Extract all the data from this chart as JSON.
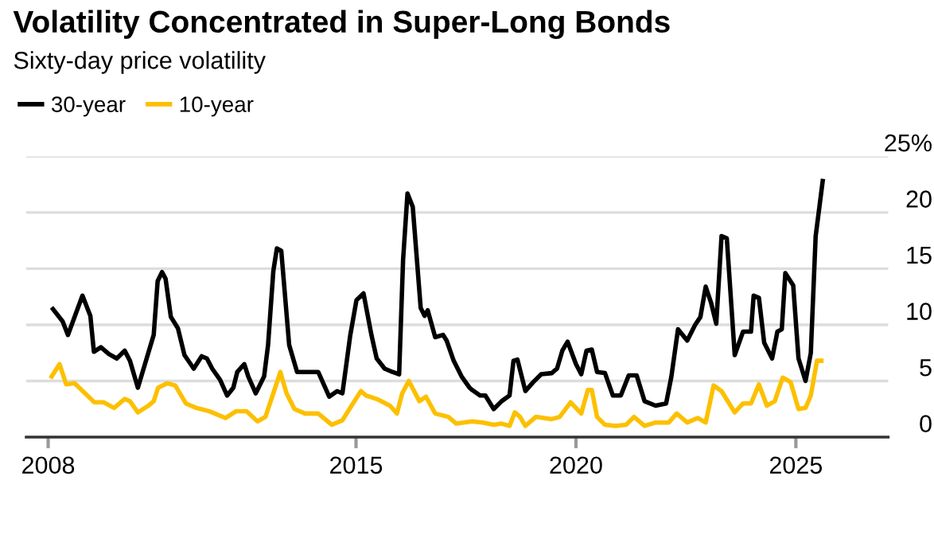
{
  "chart_data": {
    "type": "line",
    "title": "Volatility Concentrated in Super-Long Bonds",
    "subtitle": "Sixty-day price volatility",
    "series": [
      {
        "name": "30-year",
        "color": "#000000",
        "x": [
          2008.11,
          2008.33,
          2008.45,
          2008.78,
          2008.96,
          2009.04,
          2009.2,
          2009.38,
          2009.56,
          2009.74,
          2009.86,
          2010.04,
          2010.4,
          2010.49,
          2010.59,
          2010.67,
          2010.79,
          2010.95,
          2011.1,
          2011.31,
          2011.49,
          2011.61,
          2011.73,
          2011.91,
          2012.07,
          2012.21,
          2012.3,
          2012.46,
          2012.55,
          2012.72,
          2012.91,
          2013.0,
          2013.12,
          2013.2,
          2013.3,
          2013.48,
          2013.66,
          2013.9,
          2014.14,
          2014.39,
          2014.57,
          2014.69,
          2014.87,
          2015.01,
          2015.17,
          2015.35,
          2015.47,
          2015.65,
          2015.83,
          2015.98,
          2016.07,
          2016.17,
          2016.29,
          2016.47,
          2016.56,
          2016.63,
          2016.8,
          2016.98,
          2017.06,
          2017.22,
          2017.4,
          2017.58,
          2017.64,
          2017.82,
          2017.94,
          2018.13,
          2018.31,
          2018.49,
          2018.58,
          2018.67,
          2018.85,
          2019.03,
          2019.21,
          2019.45,
          2019.57,
          2019.69,
          2019.81,
          2020.0,
          2020.12,
          2020.24,
          2020.36,
          2020.48,
          2020.66,
          2020.84,
          2021.02,
          2021.2,
          2021.38,
          2021.56,
          2021.81,
          2022.05,
          2022.17,
          2022.32,
          2022.53,
          2022.71,
          2022.83,
          2022.95,
          2023.07,
          2023.19,
          2023.31,
          2023.43,
          2023.61,
          2023.8,
          2023.98,
          2024.04,
          2024.16,
          2024.28,
          2024.46,
          2024.58,
          2024.68,
          2024.76,
          2024.94,
          2025.06,
          2025.22,
          2025.34,
          2025.45,
          2025.61
        ],
        "values": [
          11.4,
          10.3,
          9.1,
          12.6,
          10.8,
          7.6,
          8.0,
          7.4,
          7.0,
          7.7,
          6.8,
          4.4,
          9.1,
          13.9,
          14.7,
          14.1,
          10.7,
          9.7,
          7.3,
          6.1,
          7.2,
          7.0,
          6.1,
          5.1,
          3.7,
          4.4,
          5.8,
          6.5,
          5.4,
          3.9,
          5.4,
          8.2,
          14.8,
          16.8,
          16.6,
          8.2,
          5.8,
          5.8,
          5.8,
          3.6,
          4.1,
          3.9,
          9.1,
          12.2,
          12.8,
          9.1,
          7.0,
          6.1,
          5.8,
          5.6,
          15.8,
          21.7,
          20.5,
          11.5,
          10.8,
          11.3,
          8.9,
          9.1,
          8.6,
          6.8,
          5.4,
          4.4,
          4.2,
          3.7,
          3.7,
          2.5,
          3.2,
          3.7,
          6.8,
          6.9,
          4.1,
          4.9,
          5.6,
          5.7,
          6.1,
          7.7,
          8.5,
          6.5,
          5.6,
          7.7,
          7.8,
          5.8,
          5.7,
          3.7,
          3.7,
          5.5,
          5.5,
          3.2,
          2.8,
          3.0,
          5.4,
          9.6,
          8.6,
          10.0,
          10.7,
          13.4,
          12.0,
          10.1,
          17.9,
          17.7,
          7.3,
          9.4,
          9.4,
          12.6,
          12.4,
          8.4,
          7.0,
          9.4,
          9.6,
          14.6,
          13.5,
          7.0,
          5.0,
          7.5,
          17.9,
          22.8
        ]
      },
      {
        "name": "10-year",
        "color": "#fcc000",
        "x": [
          2008.08,
          2008.26,
          2008.41,
          2008.6,
          2008.84,
          2009.05,
          2009.26,
          2009.5,
          2009.74,
          2009.86,
          2010.04,
          2010.28,
          2010.4,
          2010.5,
          2010.71,
          2010.89,
          2011.13,
          2011.37,
          2011.67,
          2012.03,
          2012.27,
          2012.51,
          2012.76,
          2012.94,
          2013.12,
          2013.28,
          2013.42,
          2013.6,
          2013.84,
          2014.14,
          2014.45,
          2014.69,
          2014.93,
          2015.11,
          2015.23,
          2015.47,
          2015.77,
          2015.93,
          2016.05,
          2016.2,
          2016.44,
          2016.59,
          2016.8,
          2017.1,
          2017.28,
          2017.64,
          2017.88,
          2018.13,
          2018.31,
          2018.49,
          2018.61,
          2018.73,
          2018.85,
          2019.09,
          2019.45,
          2019.63,
          2019.88,
          2020.12,
          2020.27,
          2020.36,
          2020.48,
          2020.66,
          2020.9,
          2021.14,
          2021.32,
          2021.56,
          2021.81,
          2022.11,
          2022.29,
          2022.53,
          2022.77,
          2022.95,
          2023.13,
          2023.31,
          2023.61,
          2023.8,
          2023.98,
          2024.16,
          2024.34,
          2024.52,
          2024.7,
          2024.88,
          2025.06,
          2025.22,
          2025.34,
          2025.48,
          2025.58
        ],
        "values": [
          5.4,
          6.5,
          4.7,
          4.8,
          3.9,
          3.1,
          3.1,
          2.6,
          3.4,
          3.2,
          2.2,
          2.8,
          3.2,
          4.4,
          4.8,
          4.6,
          3.0,
          2.6,
          2.3,
          1.7,
          2.3,
          2.3,
          1.4,
          1.8,
          3.9,
          5.8,
          3.9,
          2.5,
          2.1,
          2.1,
          1.1,
          1.5,
          3.0,
          4.1,
          3.7,
          3.4,
          2.8,
          2.1,
          3.9,
          5.0,
          3.2,
          3.6,
          2.1,
          1.8,
          1.2,
          1.4,
          1.3,
          1.1,
          1.2,
          1.0,
          2.2,
          1.8,
          1.0,
          1.8,
          1.6,
          1.8,
          3.1,
          2.1,
          4.2,
          4.2,
          1.8,
          1.1,
          1.0,
          1.1,
          1.8,
          1.0,
          1.3,
          1.3,
          2.1,
          1.3,
          1.7,
          1.3,
          4.6,
          4.1,
          2.2,
          3.0,
          3.0,
          4.7,
          2.8,
          3.2,
          5.3,
          4.9,
          2.5,
          2.6,
          3.7,
          6.8,
          6.8
        ]
      }
    ],
    "xlim": [
      2007.5,
      2027.1
    ],
    "xticks": [
      2008,
      2015,
      2020,
      2025
    ],
    "ylim": [
      0,
      25
    ],
    "yticks": [
      0,
      5,
      10,
      15,
      20,
      {
        "value": 25,
        "label": "25%"
      }
    ],
    "grid": "y",
    "legend": "top left",
    "line_style": "solid",
    "marker": "none"
  }
}
